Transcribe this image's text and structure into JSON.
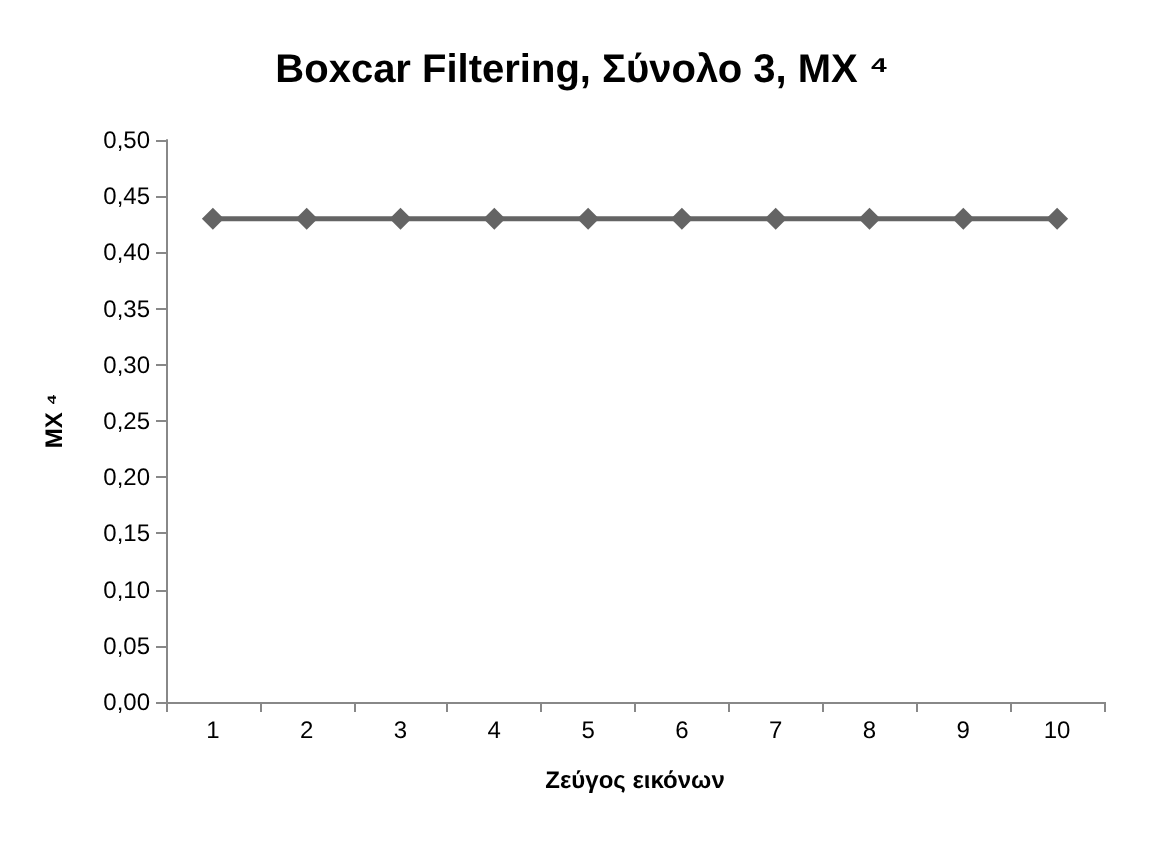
{
  "chart_data": {
    "type": "line",
    "title": "Boxcar Filtering, Σύνολο 3, MX ⁴",
    "xlabel": "Ζεύγος εικόνων",
    "ylabel": "MX ⁴",
    "categories": [
      "1",
      "2",
      "3",
      "4",
      "5",
      "6",
      "7",
      "8",
      "9",
      "10"
    ],
    "series": [
      {
        "color": "#646464",
        "values": [
          0.43,
          0.43,
          0.43,
          0.43,
          0.43,
          0.43,
          0.43,
          0.43,
          0.43,
          0.43
        ]
      }
    ],
    "ylim": [
      0,
      0.5
    ],
    "yticks": [
      {
        "value": 0,
        "label": "0,00"
      },
      {
        "value": 0.05,
        "label": "0,05"
      },
      {
        "value": 0.1,
        "label": "0,10"
      },
      {
        "value": 0.15,
        "label": "0,15"
      },
      {
        "value": 0.2,
        "label": "0,20"
      },
      {
        "value": 0.25,
        "label": "0,25"
      },
      {
        "value": 0.3,
        "label": "0,30"
      },
      {
        "value": 0.35,
        "label": "0,35"
      },
      {
        "value": 0.4,
        "label": "0,40"
      },
      {
        "value": 0.45,
        "label": "0,45"
      },
      {
        "value": 0.5,
        "label": "0,50"
      }
    ],
    "grid": false,
    "marker": "diamond",
    "line_style": "solid"
  }
}
